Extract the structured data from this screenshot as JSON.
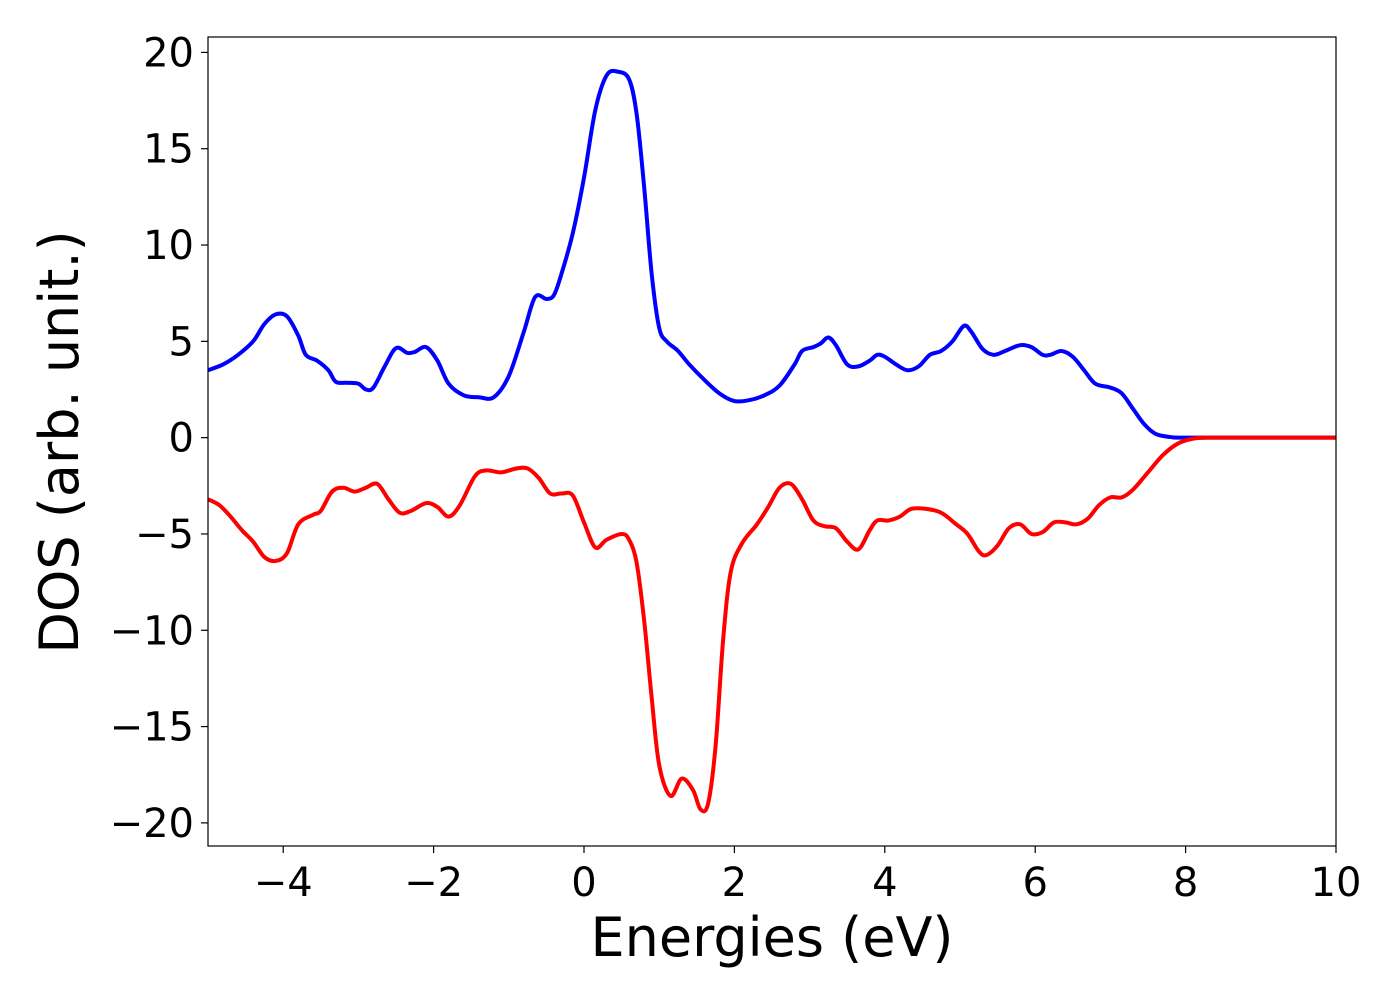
{
  "chart_data": {
    "type": "line",
    "title": "",
    "xlabel": "Energies (eV)",
    "ylabel": "DOS (arb. unit.)",
    "xlim": [
      -5,
      10
    ],
    "ylim": [
      -21.2,
      20.8
    ],
    "xticks": [
      -4,
      -2,
      0,
      2,
      4,
      6,
      8,
      10
    ],
    "yticks": [
      -20,
      -15,
      -10,
      -5,
      0,
      5,
      10,
      15,
      20
    ],
    "xtick_labels": [
      "−4",
      "−2",
      "0",
      "2",
      "4",
      "6",
      "8",
      "10"
    ],
    "ytick_labels": [
      "−20",
      "−15",
      "−10",
      "−5",
      "0",
      "5",
      "10",
      "15",
      "20"
    ],
    "grid": false,
    "legend": "none",
    "series": [
      {
        "color": "#0000ff",
        "points": [
          [
            -5.0,
            3.5
          ],
          [
            -4.8,
            3.8
          ],
          [
            -4.6,
            4.3
          ],
          [
            -4.4,
            5.0
          ],
          [
            -4.25,
            5.9
          ],
          [
            -4.1,
            6.4
          ],
          [
            -3.95,
            6.3
          ],
          [
            -3.8,
            5.3
          ],
          [
            -3.7,
            4.3
          ],
          [
            -3.55,
            4.0
          ],
          [
            -3.4,
            3.5
          ],
          [
            -3.3,
            2.9
          ],
          [
            -3.15,
            2.85
          ],
          [
            -3.0,
            2.8
          ],
          [
            -2.9,
            2.5
          ],
          [
            -2.8,
            2.6
          ],
          [
            -2.65,
            3.7
          ],
          [
            -2.5,
            4.65
          ],
          [
            -2.35,
            4.4
          ],
          [
            -2.25,
            4.45
          ],
          [
            -2.1,
            4.7
          ],
          [
            -1.95,
            4.0
          ],
          [
            -1.8,
            2.8
          ],
          [
            -1.6,
            2.2
          ],
          [
            -1.4,
            2.1
          ],
          [
            -1.2,
            2.1
          ],
          [
            -1.0,
            3.2
          ],
          [
            -0.8,
            5.5
          ],
          [
            -0.65,
            7.3
          ],
          [
            -0.5,
            7.2
          ],
          [
            -0.4,
            7.4
          ],
          [
            -0.3,
            8.5
          ],
          [
            -0.15,
            10.6
          ],
          [
            0.0,
            13.5
          ],
          [
            0.15,
            17.0
          ],
          [
            0.3,
            18.8
          ],
          [
            0.45,
            19.0
          ],
          [
            0.6,
            18.6
          ],
          [
            0.7,
            16.8
          ],
          [
            0.8,
            13.0
          ],
          [
            0.9,
            8.5
          ],
          [
            1.0,
            5.7
          ],
          [
            1.1,
            5.0
          ],
          [
            1.25,
            4.5
          ],
          [
            1.4,
            3.8
          ],
          [
            1.6,
            3.0
          ],
          [
            1.8,
            2.3
          ],
          [
            2.0,
            1.9
          ],
          [
            2.2,
            1.95
          ],
          [
            2.4,
            2.2
          ],
          [
            2.6,
            2.7
          ],
          [
            2.8,
            3.8
          ],
          [
            2.9,
            4.5
          ],
          [
            3.05,
            4.7
          ],
          [
            3.15,
            4.9
          ],
          [
            3.25,
            5.2
          ],
          [
            3.35,
            4.8
          ],
          [
            3.5,
            3.8
          ],
          [
            3.65,
            3.7
          ],
          [
            3.8,
            4.0
          ],
          [
            3.9,
            4.3
          ],
          [
            4.0,
            4.2
          ],
          [
            4.15,
            3.8
          ],
          [
            4.3,
            3.5
          ],
          [
            4.45,
            3.7
          ],
          [
            4.6,
            4.3
          ],
          [
            4.75,
            4.5
          ],
          [
            4.9,
            5.0
          ],
          [
            5.05,
            5.8
          ],
          [
            5.15,
            5.5
          ],
          [
            5.3,
            4.6
          ],
          [
            5.45,
            4.3
          ],
          [
            5.6,
            4.5
          ],
          [
            5.8,
            4.8
          ],
          [
            5.95,
            4.7
          ],
          [
            6.1,
            4.3
          ],
          [
            6.2,
            4.3
          ],
          [
            6.35,
            4.5
          ],
          [
            6.5,
            4.2
          ],
          [
            6.65,
            3.5
          ],
          [
            6.8,
            2.8
          ],
          [
            7.0,
            2.6
          ],
          [
            7.15,
            2.3
          ],
          [
            7.3,
            1.5
          ],
          [
            7.45,
            0.7
          ],
          [
            7.6,
            0.2
          ],
          [
            7.8,
            0.03
          ],
          [
            8.0,
            0.0
          ],
          [
            9.0,
            0.0
          ],
          [
            10.0,
            0.0
          ]
        ]
      },
      {
        "color": "#ff0000",
        "points": [
          [
            -5.0,
            -3.2
          ],
          [
            -4.85,
            -3.5
          ],
          [
            -4.7,
            -4.1
          ],
          [
            -4.55,
            -4.8
          ],
          [
            -4.4,
            -5.4
          ],
          [
            -4.25,
            -6.2
          ],
          [
            -4.1,
            -6.4
          ],
          [
            -3.95,
            -6.0
          ],
          [
            -3.8,
            -4.5
          ],
          [
            -3.6,
            -4.0
          ],
          [
            -3.5,
            -3.8
          ],
          [
            -3.35,
            -2.8
          ],
          [
            -3.2,
            -2.6
          ],
          [
            -3.05,
            -2.8
          ],
          [
            -2.9,
            -2.6
          ],
          [
            -2.75,
            -2.4
          ],
          [
            -2.6,
            -3.2
          ],
          [
            -2.45,
            -3.9
          ],
          [
            -2.3,
            -3.8
          ],
          [
            -2.1,
            -3.4
          ],
          [
            -1.95,
            -3.6
          ],
          [
            -1.8,
            -4.1
          ],
          [
            -1.65,
            -3.5
          ],
          [
            -1.45,
            -2.0
          ],
          [
            -1.3,
            -1.7
          ],
          [
            -1.1,
            -1.8
          ],
          [
            -0.9,
            -1.6
          ],
          [
            -0.75,
            -1.6
          ],
          [
            -0.6,
            -2.1
          ],
          [
            -0.45,
            -2.9
          ],
          [
            -0.3,
            -2.9
          ],
          [
            -0.15,
            -3.0
          ],
          [
            0.0,
            -4.4
          ],
          [
            0.15,
            -5.7
          ],
          [
            0.3,
            -5.3
          ],
          [
            0.5,
            -5.0
          ],
          [
            0.6,
            -5.3
          ],
          [
            0.7,
            -6.5
          ],
          [
            0.8,
            -9.5
          ],
          [
            0.9,
            -13.5
          ],
          [
            1.0,
            -17.0
          ],
          [
            1.15,
            -18.6
          ],
          [
            1.3,
            -17.7
          ],
          [
            1.45,
            -18.3
          ],
          [
            1.55,
            -19.3
          ],
          [
            1.65,
            -19.0
          ],
          [
            1.75,
            -16.0
          ],
          [
            1.85,
            -10.5
          ],
          [
            1.95,
            -7.0
          ],
          [
            2.1,
            -5.5
          ],
          [
            2.3,
            -4.5
          ],
          [
            2.45,
            -3.6
          ],
          [
            2.6,
            -2.6
          ],
          [
            2.75,
            -2.4
          ],
          [
            2.9,
            -3.2
          ],
          [
            3.05,
            -4.3
          ],
          [
            3.2,
            -4.6
          ],
          [
            3.35,
            -4.7
          ],
          [
            3.5,
            -5.4
          ],
          [
            3.65,
            -5.8
          ],
          [
            3.8,
            -4.8
          ],
          [
            3.9,
            -4.3
          ],
          [
            4.05,
            -4.3
          ],
          [
            4.2,
            -4.1
          ],
          [
            4.35,
            -3.7
          ],
          [
            4.55,
            -3.7
          ],
          [
            4.75,
            -3.9
          ],
          [
            4.95,
            -4.5
          ],
          [
            5.1,
            -5.0
          ],
          [
            5.25,
            -5.9
          ],
          [
            5.35,
            -6.1
          ],
          [
            5.5,
            -5.6
          ],
          [
            5.65,
            -4.7
          ],
          [
            5.8,
            -4.5
          ],
          [
            5.95,
            -5.0
          ],
          [
            6.1,
            -4.9
          ],
          [
            6.25,
            -4.4
          ],
          [
            6.4,
            -4.4
          ],
          [
            6.55,
            -4.5
          ],
          [
            6.7,
            -4.2
          ],
          [
            6.85,
            -3.5
          ],
          [
            7.0,
            -3.1
          ],
          [
            7.15,
            -3.1
          ],
          [
            7.3,
            -2.7
          ],
          [
            7.5,
            -1.8
          ],
          [
            7.7,
            -0.9
          ],
          [
            7.9,
            -0.3
          ],
          [
            8.1,
            -0.05
          ],
          [
            8.3,
            0.0
          ],
          [
            9.0,
            0.0
          ],
          [
            10.0,
            0.0
          ]
        ]
      }
    ]
  }
}
